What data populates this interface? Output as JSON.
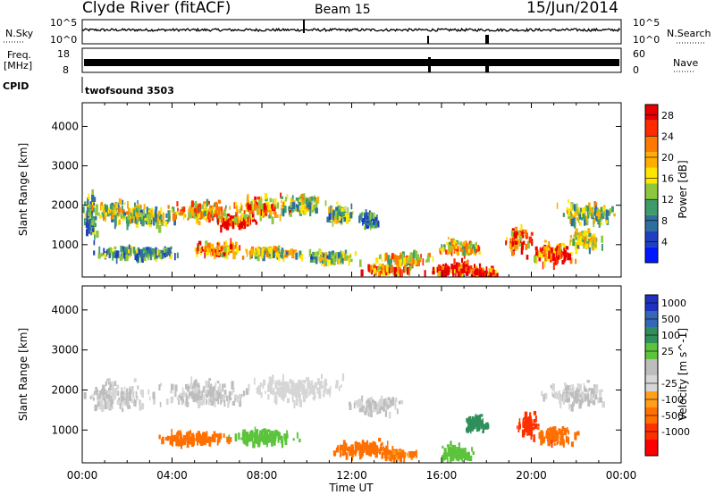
{
  "header": {
    "station": "Clyde River (fitACF)",
    "beam": "Beam 15",
    "date": "15/Jun/2014"
  },
  "panels": {
    "nsky_label": "N.Sky",
    "nsky_ticks": [
      "10^5",
      "10^0"
    ],
    "nsearch_label": "N.Search",
    "freq_label_1": "Freq.",
    "freq_label_2": "[MHz]",
    "freq_ticks": [
      "18",
      "8"
    ],
    "nave_label": "Nave",
    "nave_ticks": [
      "60",
      "0"
    ],
    "cpid_label": "CPID",
    "cpid_text": "twofsound 3503"
  },
  "colors": {
    "power": [
      "#0018ff",
      "#1f3fbf",
      "#2e6f9e",
      "#3e9c6a",
      "#8dc63f",
      "#ffe600",
      "#ffae00",
      "#ff7800",
      "#ff2a00",
      "#e60000"
    ],
    "velocity": [
      "#2030c0",
      "#3468b6",
      "#2f8f5a",
      "#5cc33c",
      "#bdbdbd",
      "#d6d6d6",
      "#ff9f1a",
      "#ff7000",
      "#ff3000",
      "#ff0000"
    ]
  },
  "chart_data": [
    {
      "type": "heatmap",
      "ylabel": "Slant Range [km]",
      "xlabel": "Time UT",
      "x_ticks": [
        "00:00",
        "04:00",
        "08:00",
        "12:00",
        "16:00",
        "20:00",
        "00:00"
      ],
      "x_range_hours": [
        0,
        24
      ],
      "y_ticks": [
        1000,
        2000,
        3000,
        4000
      ],
      "ylim": [
        180,
        4600
      ],
      "colorbar": {
        "label": "Power [dB]",
        "ticks": [
          "4",
          "8",
          "12",
          "16",
          "20",
          "24",
          "28"
        ],
        "range": [
          0,
          30
        ]
      },
      "blobs": [
        {
          "t": 0.3,
          "r": 1800,
          "dt": 0.4,
          "dr": 800,
          "v": 10
        },
        {
          "t": 1.5,
          "r": 1850,
          "dt": 1.8,
          "dr": 400,
          "v": 16
        },
        {
          "t": 3.0,
          "r": 1750,
          "dt": 1.5,
          "dr": 300,
          "v": 13
        },
        {
          "t": 5.5,
          "r": 1900,
          "dt": 2.0,
          "dr": 350,
          "v": 18
        },
        {
          "t": 6.8,
          "r": 1650,
          "dt": 1.2,
          "dr": 250,
          "v": 26
        },
        {
          "t": 8.0,
          "r": 2000,
          "dt": 1.6,
          "dr": 400,
          "v": 20
        },
        {
          "t": 9.8,
          "r": 2100,
          "dt": 1.2,
          "dr": 350,
          "v": 14
        },
        {
          "t": 11.3,
          "r": 1850,
          "dt": 0.8,
          "dr": 300,
          "v": 12
        },
        {
          "t": 12.7,
          "r": 1700,
          "dt": 0.6,
          "dr": 300,
          "v": 9
        },
        {
          "t": 2.5,
          "r": 850,
          "dt": 2.5,
          "dr": 200,
          "v": 10
        },
        {
          "t": 6.0,
          "r": 950,
          "dt": 1.5,
          "dr": 250,
          "v": 20
        },
        {
          "t": 8.5,
          "r": 850,
          "dt": 1.8,
          "dr": 200,
          "v": 16
        },
        {
          "t": 11.0,
          "r": 750,
          "dt": 1.5,
          "dr": 200,
          "v": 12
        },
        {
          "t": 13.5,
          "r": 450,
          "dt": 1.5,
          "dr": 150,
          "v": 22
        },
        {
          "t": 14.3,
          "r": 700,
          "dt": 1.5,
          "dr": 200,
          "v": 18
        },
        {
          "t": 16.5,
          "r": 450,
          "dt": 1.5,
          "dr": 300,
          "v": 28
        },
        {
          "t": 17.8,
          "r": 350,
          "dt": 1.2,
          "dr": 200,
          "v": 27
        },
        {
          "t": 16.8,
          "r": 1000,
          "dt": 1.2,
          "dr": 250,
          "v": 18
        },
        {
          "t": 19.4,
          "r": 1200,
          "dt": 0.8,
          "dr": 400,
          "v": 22
        },
        {
          "t": 20.8,
          "r": 850,
          "dt": 1.4,
          "dr": 350,
          "v": 25
        },
        {
          "t": 22.3,
          "r": 1200,
          "dt": 1.0,
          "dr": 300,
          "v": 16
        },
        {
          "t": 22.5,
          "r": 1850,
          "dt": 1.6,
          "dr": 400,
          "v": 14
        }
      ]
    },
    {
      "type": "heatmap",
      "ylabel": "Slant Range [km]",
      "xlabel": "Time UT",
      "x_ticks": [
        "00:00",
        "04:00",
        "08:00",
        "12:00",
        "16:00",
        "20:00",
        "00:00"
      ],
      "x_range_hours": [
        0,
        24
      ],
      "y_ticks": [
        1000,
        2000,
        3000,
        4000
      ],
      "ylim": [
        180,
        4600
      ],
      "colorbar": {
        "label": "Velocity [m s^-1]",
        "ticks": [
          "1000",
          "500",
          "100",
          "25",
          "-25",
          "-100",
          "-500",
          "-1000"
        ]
      },
      "blobs": [
        {
          "t": 1.5,
          "r": 1900,
          "dt": 2.0,
          "dr": 500,
          "v": 0
        },
        {
          "t": 5.5,
          "r": 1950,
          "dt": 2.5,
          "dr": 450,
          "v": 0
        },
        {
          "t": 9.5,
          "r": 2100,
          "dt": 2.5,
          "dr": 400,
          "v": -10
        },
        {
          "t": 13.0,
          "r": 1700,
          "dt": 1.5,
          "dr": 300,
          "v": 0
        },
        {
          "t": 22.0,
          "r": 1950,
          "dt": 2.0,
          "dr": 400,
          "v": 0
        },
        {
          "t": 5.0,
          "r": 850,
          "dt": 2.0,
          "dr": 200,
          "v": -150
        },
        {
          "t": 8.0,
          "r": 900,
          "dt": 1.8,
          "dr": 250,
          "v": 40
        },
        {
          "t": 12.5,
          "r": 600,
          "dt": 1.8,
          "dr": 250,
          "v": -200
        },
        {
          "t": 14.0,
          "r": 450,
          "dt": 1.2,
          "dr": 150,
          "v": -120
        },
        {
          "t": 16.6,
          "r": 500,
          "dt": 1.0,
          "dr": 250,
          "v": 60
        },
        {
          "t": 17.5,
          "r": 1200,
          "dt": 0.8,
          "dr": 300,
          "v": 300
        },
        {
          "t": 19.8,
          "r": 1200,
          "dt": 0.6,
          "dr": 350,
          "v": -700
        },
        {
          "t": 21.0,
          "r": 900,
          "dt": 1.2,
          "dr": 300,
          "v": -400
        }
      ]
    }
  ]
}
